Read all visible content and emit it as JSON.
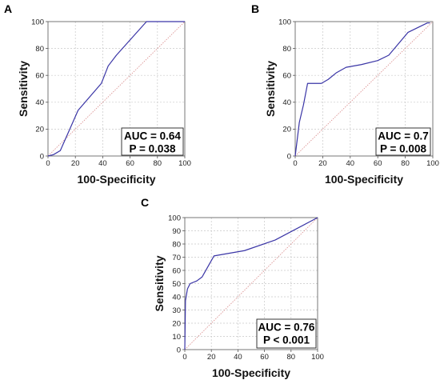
{
  "chart_data": [
    {
      "type": "line",
      "panel": "A",
      "xlabel": "100-Specificity",
      "ylabel": "Sensitivity",
      "xlim": [
        0,
        100
      ],
      "ylim": [
        0,
        100
      ],
      "xticks": [
        "0",
        "20",
        "40",
        "60",
        "80",
        "100"
      ],
      "yticks": [
        "0",
        "20",
        "40",
        "60",
        "80",
        "100"
      ],
      "grid": true,
      "diagonal": true,
      "x": [
        0,
        4,
        9,
        22,
        39,
        44,
        50,
        72,
        100
      ],
      "y": [
        0,
        1,
        4,
        34,
        54,
        67,
        75,
        100,
        100
      ],
      "annotation": [
        "AUC = 0.64",
        "P = 0.038"
      ],
      "line_color": "#3a35a6",
      "diagonal_color": "#d98a8a"
    },
    {
      "type": "line",
      "panel": "B",
      "xlabel": "100-Specificity",
      "ylabel": "Sensitivity",
      "xlim": [
        0,
        100
      ],
      "ylim": [
        0,
        100
      ],
      "xticks": [
        "0",
        "20",
        "40",
        "60",
        "80",
        "100"
      ],
      "yticks": [
        "0",
        "20",
        "40",
        "60",
        "80",
        "100"
      ],
      "grid": true,
      "diagonal": true,
      "x": [
        0,
        3,
        6,
        9,
        13,
        19,
        24,
        30,
        37,
        48,
        60,
        68,
        82,
        96,
        98
      ],
      "y": [
        0,
        25,
        38,
        54,
        54,
        54,
        57,
        62,
        66,
        68,
        71,
        75,
        92,
        99,
        99
      ],
      "annotation": [
        "AUC = 0.7",
        "P = 0.008"
      ],
      "line_color": "#3a35a6",
      "diagonal_color": "#d98a8a"
    },
    {
      "type": "line",
      "panel": "C",
      "xlabel": "100-Specificity",
      "ylabel": "Sensitivity",
      "xlim": [
        0,
        100
      ],
      "ylim": [
        0,
        100
      ],
      "xticks": [
        "0",
        "20",
        "40",
        "60",
        "80",
        "100"
      ],
      "yticks": [
        "0",
        "10",
        "20",
        "30",
        "40",
        "50",
        "60",
        "70",
        "80",
        "90",
        "100"
      ],
      "grid": true,
      "diagonal": true,
      "x": [
        0,
        0.5,
        1,
        2,
        4,
        9,
        13,
        22,
        45,
        68,
        100
      ],
      "y": [
        0,
        37,
        40,
        46,
        50,
        52,
        55,
        71,
        75,
        83,
        100
      ],
      "annotation": [
        "AUC = 0.76",
        "P < 0.001"
      ],
      "line_color": "#3a35a6",
      "diagonal_color": "#d98a8a"
    }
  ]
}
